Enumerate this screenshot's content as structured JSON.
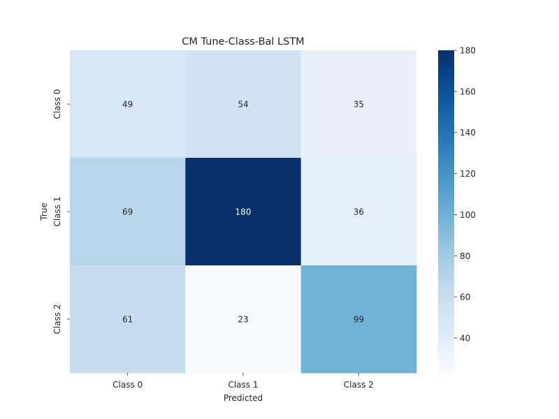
{
  "chart_data": {
    "type": "heatmap",
    "title": "CM Tune-Class-Bal LSTM",
    "xlabel": "Predicted",
    "ylabel": "True",
    "x_categories": [
      "Class 0",
      "Class 1",
      "Class 2"
    ],
    "y_categories": [
      "Class 0",
      "Class 1",
      "Class 2"
    ],
    "values": [
      [
        49,
        54,
        35
      ],
      [
        69,
        180,
        36
      ],
      [
        61,
        23,
        99
      ]
    ],
    "colormap": "Blues",
    "vmin": 23,
    "vmax": 180,
    "colorbar_ticks": [
      40,
      60,
      80,
      100,
      120,
      140,
      160,
      180
    ],
    "colorbar_position": "right",
    "grid": false
  }
}
